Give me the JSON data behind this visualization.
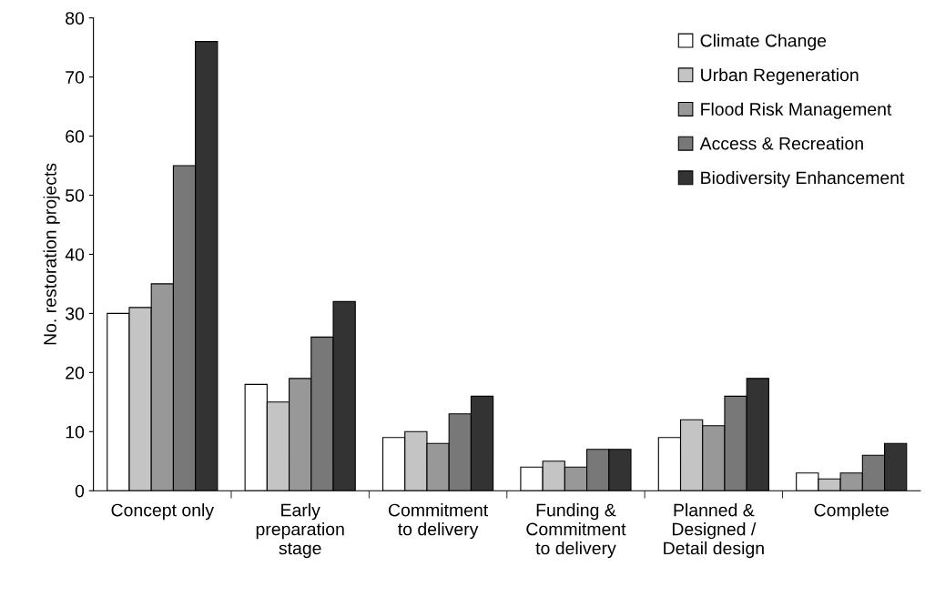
{
  "chart_data": {
    "type": "bar",
    "ylabel": "No. restoration projects",
    "categories": [
      "Concept only",
      "Early\npreparation\nstage",
      "Commitment\nto delivery",
      "Funding &\nCommitment\nto delivery",
      "Planned &\nDesigned /\nDetail design",
      "Complete"
    ],
    "series": [
      {
        "name": "Climate Change",
        "color": "#ffffff",
        "values": [
          30,
          18,
          9,
          4,
          9,
          3
        ]
      },
      {
        "name": "Urban Regeneration",
        "color": "#c4c4c4",
        "values": [
          31,
          15,
          10,
          5,
          12,
          2
        ]
      },
      {
        "name": "Flood Risk Management",
        "color": "#989898",
        "values": [
          35,
          19,
          8,
          4,
          11,
          3
        ]
      },
      {
        "name": "Access & Recreation",
        "color": "#787878",
        "values": [
          55,
          26,
          13,
          7,
          16,
          6
        ]
      },
      {
        "name": "Biodiversity Enhancement",
        "color": "#333333",
        "values": [
          76,
          32,
          16,
          7,
          19,
          8
        ]
      }
    ],
    "ylim": [
      0,
      80
    ],
    "yticks": [
      0,
      10,
      20,
      30,
      40,
      50,
      60,
      70,
      80
    ],
    "grid": false,
    "legend": "top right"
  }
}
